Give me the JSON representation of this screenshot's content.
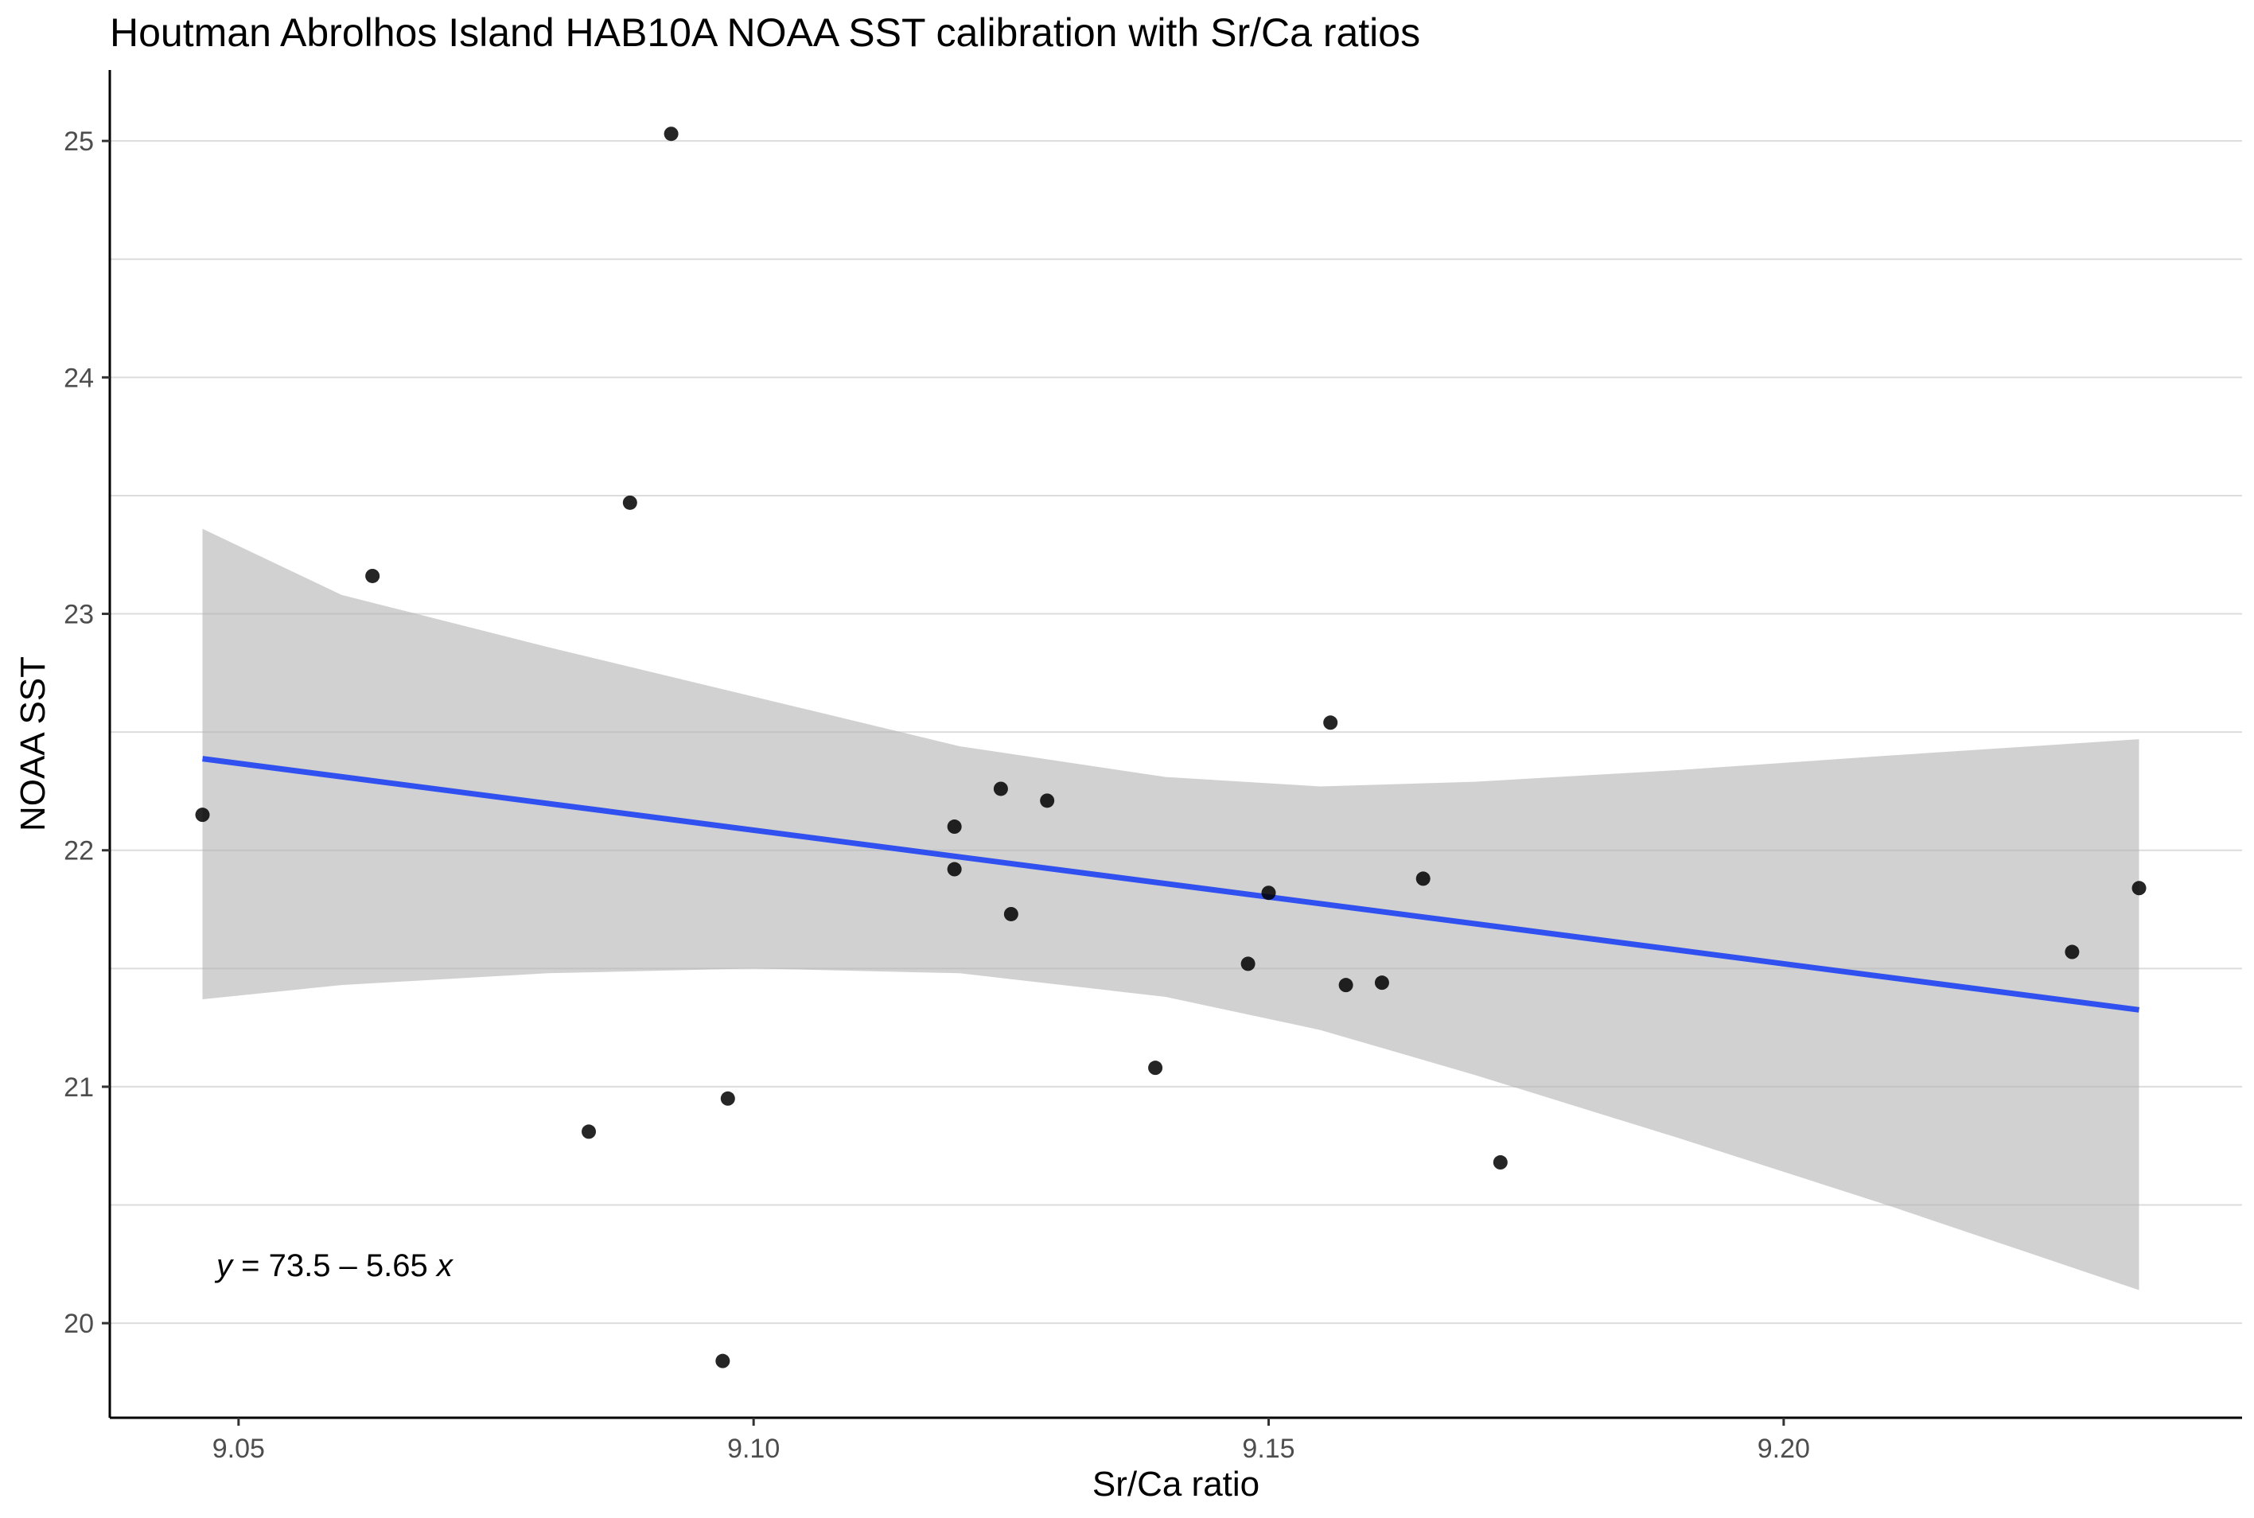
{
  "chart_data": {
    "type": "scatter",
    "title": "Houtman Abrolhos Island HAB10A NOAA SST calibration with Sr/Ca ratios",
    "xlabel": "Sr/Ca ratio",
    "ylabel": "NOAA SST",
    "xlim": [
      9.0375,
      9.2445
    ],
    "ylim": [
      19.6,
      25.3
    ],
    "x_ticks": [
      9.05,
      9.1,
      9.15,
      9.2
    ],
    "x_tick_labels": [
      "9.05",
      "9.10",
      "9.15",
      "9.20"
    ],
    "y_ticks": [
      20,
      21,
      22,
      23,
      24,
      25
    ],
    "y_tick_labels": [
      "20",
      "21",
      "22",
      "23",
      "24",
      "25"
    ],
    "grid": "horizontal",
    "equation": {
      "y_var": "y",
      "equals": " = 73.5 – 5.65 ",
      "x_var": "x"
    },
    "regression": {
      "intercept": 73.5,
      "slope": -5.65,
      "color": "#3050f0",
      "x_range": [
        9.0465,
        9.2345
      ]
    },
    "confidence_band": {
      "color": "#b3b3b3",
      "x": [
        9.0465,
        9.06,
        9.08,
        9.1,
        9.12,
        9.14,
        9.155,
        9.17,
        9.19,
        9.21,
        9.2345
      ],
      "upper": [
        23.36,
        23.08,
        22.86,
        22.65,
        22.44,
        22.31,
        22.27,
        22.29,
        22.34,
        22.4,
        22.47
      ],
      "lower": [
        21.37,
        21.43,
        21.48,
        21.5,
        21.48,
        21.38,
        21.24,
        21.05,
        20.78,
        20.5,
        20.14
      ]
    },
    "points": [
      {
        "x": 9.0465,
        "y": 22.15
      },
      {
        "x": 9.063,
        "y": 23.16
      },
      {
        "x": 9.084,
        "y": 20.81
      },
      {
        "x": 9.088,
        "y": 23.47
      },
      {
        "x": 9.092,
        "y": 25.03
      },
      {
        "x": 9.097,
        "y": 19.84
      },
      {
        "x": 9.0975,
        "y": 20.95
      },
      {
        "x": 9.1195,
        "y": 22.1
      },
      {
        "x": 9.1195,
        "y": 21.92
      },
      {
        "x": 9.124,
        "y": 22.26
      },
      {
        "x": 9.125,
        "y": 21.73
      },
      {
        "x": 9.1285,
        "y": 22.21
      },
      {
        "x": 9.139,
        "y": 21.08
      },
      {
        "x": 9.148,
        "y": 21.52
      },
      {
        "x": 9.15,
        "y": 21.82
      },
      {
        "x": 9.156,
        "y": 22.54
      },
      {
        "x": 9.1575,
        "y": 21.43
      },
      {
        "x": 9.161,
        "y": 21.44
      },
      {
        "x": 9.165,
        "y": 21.88
      },
      {
        "x": 9.1725,
        "y": 20.68
      },
      {
        "x": 9.228,
        "y": 21.57
      },
      {
        "x": 9.2345,
        "y": 21.84
      }
    ]
  }
}
